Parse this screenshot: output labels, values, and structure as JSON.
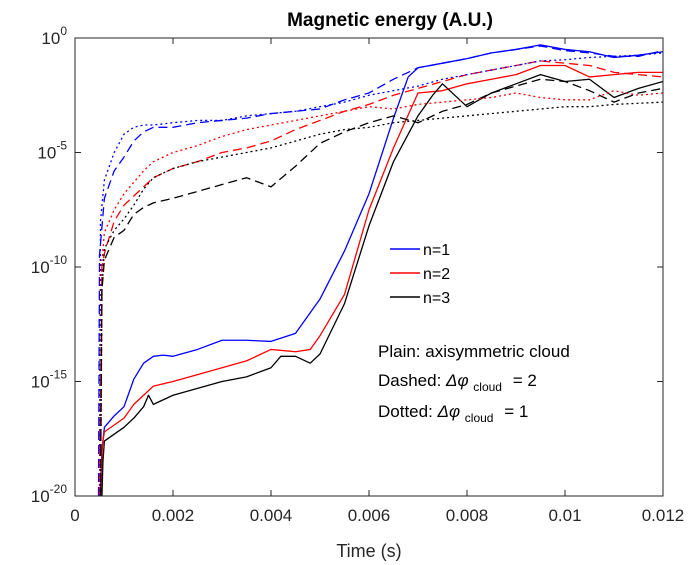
{
  "chart_data": {
    "type": "line",
    "title": "Magnetic energy (A.U.)",
    "xlabel": "Time (s)",
    "ylabel": "",
    "xlim": [
      0,
      0.012
    ],
    "ylim_exponent": [
      -20,
      0
    ],
    "y_scale": "log",
    "grid": false,
    "x_ticks": [
      "0",
      "0.002",
      "0.004",
      "0.006",
      "0.008",
      "0.01",
      "0.012"
    ],
    "y_ticks": [
      {
        "base": "10",
        "exp": "0",
        "value": 0
      },
      {
        "base": "10",
        "exp": "-5",
        "value": -5
      },
      {
        "base": "10",
        "exp": "-10",
        "value": -10
      },
      {
        "base": "10",
        "exp": "-15",
        "value": -15
      },
      {
        "base": "10",
        "exp": "-20",
        "value": -20
      }
    ],
    "legend": {
      "placement": "center-right",
      "entries": [
        {
          "label": "n=1",
          "color": "#0000ff"
        },
        {
          "label": "n=2",
          "color": "#ff0000"
        },
        {
          "label": "n=3",
          "color": "#000000"
        }
      ]
    },
    "annotations": {
      "plain": "Plain: axisymmetric cloud",
      "dashed_prefix": "Dashed: ",
      "dotted_prefix": "Dotted: ",
      "symbol": "Δφ",
      "subscript": "cloud",
      "dashed_value": "= 2",
      "dotted_value": "= 1"
    },
    "series": [
      {
        "mode": "Plain",
        "n": 1,
        "color": "#0000ff",
        "dash": "solid",
        "points": [
          [
            0.00051,
            -20
          ],
          [
            0.00055,
            -18
          ],
          [
            0.0006,
            -17.0
          ],
          [
            0.0008,
            -16.5
          ],
          [
            0.001,
            -16.1
          ],
          [
            0.0012,
            -14.9
          ],
          [
            0.0014,
            -14.2
          ],
          [
            0.0016,
            -13.9
          ],
          [
            0.0018,
            -13.85
          ],
          [
            0.002,
            -13.9
          ],
          [
            0.0025,
            -13.6
          ],
          [
            0.003,
            -13.2
          ],
          [
            0.0035,
            -13.2
          ],
          [
            0.004,
            -13.25
          ],
          [
            0.0045,
            -12.9
          ],
          [
            0.005,
            -11.4
          ],
          [
            0.0055,
            -9.3
          ],
          [
            0.006,
            -6.8
          ],
          [
            0.0065,
            -3.5
          ],
          [
            0.0068,
            -1.7
          ],
          [
            0.007,
            -1.3
          ],
          [
            0.0075,
            -1.1
          ],
          [
            0.008,
            -0.9
          ],
          [
            0.0085,
            -0.65
          ],
          [
            0.009,
            -0.5
          ],
          [
            0.0095,
            -0.3
          ],
          [
            0.01,
            -0.5
          ],
          [
            0.0105,
            -0.6
          ],
          [
            0.011,
            -0.85
          ],
          [
            0.0115,
            -0.75
          ],
          [
            0.012,
            -0.6
          ]
        ]
      },
      {
        "mode": "Plain",
        "n": 2,
        "color": "#ff0000",
        "dash": "solid",
        "points": [
          [
            0.00053,
            -20
          ],
          [
            0.00056,
            -17.7
          ],
          [
            0.0006,
            -17.2
          ],
          [
            0.0008,
            -16.9
          ],
          [
            0.001,
            -16.6
          ],
          [
            0.0012,
            -16.0
          ],
          [
            0.0014,
            -15.6
          ],
          [
            0.0016,
            -15.2
          ],
          [
            0.002,
            -15.0
          ],
          [
            0.0025,
            -14.7
          ],
          [
            0.003,
            -14.4
          ],
          [
            0.0035,
            -14.1
          ],
          [
            0.004,
            -13.6
          ],
          [
            0.0045,
            -13.7
          ],
          [
            0.0048,
            -13.6
          ],
          [
            0.005,
            -13.0
          ],
          [
            0.0055,
            -11.2
          ],
          [
            0.006,
            -7.5
          ],
          [
            0.0065,
            -4.8
          ],
          [
            0.007,
            -2.4
          ],
          [
            0.0075,
            -2.3
          ],
          [
            0.008,
            -2.0
          ],
          [
            0.0085,
            -1.8
          ],
          [
            0.009,
            -1.6
          ],
          [
            0.0095,
            -1.2
          ],
          [
            0.01,
            -1.2
          ],
          [
            0.0105,
            -1.7
          ],
          [
            0.011,
            -1.6
          ],
          [
            0.0115,
            -1.5
          ],
          [
            0.012,
            -1.5
          ]
        ]
      },
      {
        "mode": "Plain",
        "n": 3,
        "color": "#000000",
        "dash": "solid",
        "points": [
          [
            0.00055,
            -20
          ],
          [
            0.00057,
            -18.5
          ],
          [
            0.0006,
            -17.6
          ],
          [
            0.0008,
            -17.3
          ],
          [
            0.001,
            -17.0
          ],
          [
            0.0012,
            -16.6
          ],
          [
            0.0014,
            -16.1
          ],
          [
            0.0015,
            -15.6
          ],
          [
            0.0016,
            -16.0
          ],
          [
            0.002,
            -15.6
          ],
          [
            0.0025,
            -15.3
          ],
          [
            0.003,
            -15.0
          ],
          [
            0.0035,
            -14.8
          ],
          [
            0.004,
            -14.4
          ],
          [
            0.0042,
            -13.9
          ],
          [
            0.0045,
            -13.9
          ],
          [
            0.0048,
            -14.2
          ],
          [
            0.005,
            -13.8
          ],
          [
            0.0055,
            -11.6
          ],
          [
            0.006,
            -8.2
          ],
          [
            0.0065,
            -5.4
          ],
          [
            0.007,
            -3.4
          ],
          [
            0.0073,
            -2.5
          ],
          [
            0.0075,
            -2.0
          ],
          [
            0.008,
            -3.0
          ],
          [
            0.0085,
            -2.4
          ],
          [
            0.009,
            -2.0
          ],
          [
            0.0095,
            -1.6
          ],
          [
            0.01,
            -1.9
          ],
          [
            0.0105,
            -1.8
          ],
          [
            0.011,
            -2.6
          ],
          [
            0.0115,
            -2.2
          ],
          [
            0.012,
            -1.9
          ]
        ]
      },
      {
        "mode": "Dashed",
        "n": 1,
        "color": "#0000ff",
        "dash": "dashed",
        "points": [
          [
            0.00048,
            -20
          ],
          [
            0.0005,
            -9.5
          ],
          [
            0.0006,
            -7.0
          ],
          [
            0.0008,
            -5.8
          ],
          [
            0.001,
            -5.2
          ],
          [
            0.0012,
            -4.5
          ],
          [
            0.0014,
            -4.1
          ],
          [
            0.0016,
            -3.9
          ],
          [
            0.002,
            -3.9
          ],
          [
            0.0025,
            -3.7
          ],
          [
            0.003,
            -3.6
          ],
          [
            0.0035,
            -3.5
          ],
          [
            0.004,
            -3.3
          ],
          [
            0.0045,
            -3.2
          ],
          [
            0.005,
            -3.1
          ],
          [
            0.0055,
            -2.7
          ],
          [
            0.006,
            -2.4
          ],
          [
            0.0065,
            -1.8
          ],
          [
            0.007,
            -1.3
          ],
          [
            0.0075,
            -1.1
          ],
          [
            0.008,
            -0.9
          ],
          [
            0.0085,
            -0.65
          ],
          [
            0.009,
            -0.5
          ],
          [
            0.0095,
            -0.35
          ],
          [
            0.01,
            -0.55
          ],
          [
            0.0105,
            -0.65
          ],
          [
            0.011,
            -0.8
          ],
          [
            0.0115,
            -0.8
          ],
          [
            0.012,
            -0.55
          ]
        ]
      },
      {
        "mode": "Dashed",
        "n": 2,
        "color": "#ff0000",
        "dash": "dashed",
        "points": [
          [
            0.0005,
            -20
          ],
          [
            0.00055,
            -10.0
          ],
          [
            0.0006,
            -9.4
          ],
          [
            0.0008,
            -8.0
          ],
          [
            0.001,
            -7.3
          ],
          [
            0.0012,
            -6.9
          ],
          [
            0.0014,
            -6.5
          ],
          [
            0.0016,
            -6.1
          ],
          [
            0.002,
            -5.7
          ],
          [
            0.0025,
            -5.4
          ],
          [
            0.003,
            -5.0
          ],
          [
            0.0035,
            -4.8
          ],
          [
            0.004,
            -4.5
          ],
          [
            0.0045,
            -4.0
          ],
          [
            0.005,
            -3.6
          ],
          [
            0.0055,
            -3.2
          ],
          [
            0.006,
            -2.9
          ],
          [
            0.0065,
            -2.5
          ],
          [
            0.007,
            -2.2
          ],
          [
            0.0075,
            -1.9
          ],
          [
            0.008,
            -1.6
          ],
          [
            0.0085,
            -1.4
          ],
          [
            0.009,
            -1.2
          ],
          [
            0.0095,
            -1.0
          ],
          [
            0.01,
            -1.1
          ],
          [
            0.0105,
            -1.2
          ],
          [
            0.011,
            -1.5
          ],
          [
            0.0115,
            -1.6
          ],
          [
            0.012,
            -1.7
          ]
        ]
      },
      {
        "mode": "Dashed",
        "n": 3,
        "color": "#000000",
        "dash": "dashed",
        "points": [
          [
            0.00052,
            -20
          ],
          [
            0.00055,
            -11.0
          ],
          [
            0.0006,
            -9.7
          ],
          [
            0.0008,
            -8.7
          ],
          [
            0.001,
            -8.4
          ],
          [
            0.0012,
            -7.7
          ],
          [
            0.0014,
            -7.4
          ],
          [
            0.0016,
            -7.2
          ],
          [
            0.002,
            -7.0
          ],
          [
            0.0025,
            -6.7
          ],
          [
            0.003,
            -6.4
          ],
          [
            0.0035,
            -6.1
          ],
          [
            0.004,
            -6.5
          ],
          [
            0.0045,
            -5.6
          ],
          [
            0.005,
            -4.6
          ],
          [
            0.0055,
            -4.1
          ],
          [
            0.006,
            -3.7
          ],
          [
            0.0065,
            -3.4
          ],
          [
            0.007,
            -3.7
          ],
          [
            0.0075,
            -3.2
          ],
          [
            0.008,
            -2.9
          ],
          [
            0.0085,
            -2.4
          ],
          [
            0.009,
            -2.1
          ],
          [
            0.0095,
            -1.8
          ],
          [
            0.01,
            -1.9
          ],
          [
            0.0105,
            -2.3
          ],
          [
            0.011,
            -2.8
          ],
          [
            0.0115,
            -2.4
          ],
          [
            0.012,
            -2.2
          ]
        ]
      },
      {
        "mode": "Dotted",
        "n": 1,
        "color": "#0000ff",
        "dash": "dotted",
        "points": [
          [
            0.0005,
            -20
          ],
          [
            0.00052,
            -8.0
          ],
          [
            0.0006,
            -6.2
          ],
          [
            0.0008,
            -5.0
          ],
          [
            0.001,
            -4.2
          ],
          [
            0.0012,
            -3.9
          ],
          [
            0.0014,
            -3.8
          ],
          [
            0.0016,
            -3.8
          ],
          [
            0.002,
            -3.7
          ],
          [
            0.0025,
            -3.6
          ],
          [
            0.003,
            -3.6
          ],
          [
            0.0035,
            -3.4
          ],
          [
            0.004,
            -3.3
          ],
          [
            0.0045,
            -3.2
          ],
          [
            0.005,
            -3.0
          ],
          [
            0.0055,
            -2.8
          ],
          [
            0.006,
            -2.5
          ],
          [
            0.0065,
            -2.3
          ],
          [
            0.007,
            -2.1
          ],
          [
            0.0075,
            -1.8
          ],
          [
            0.008,
            -1.6
          ],
          [
            0.0085,
            -1.4
          ],
          [
            0.009,
            -1.2
          ],
          [
            0.0095,
            -1.0
          ],
          [
            0.01,
            -0.95
          ],
          [
            0.0105,
            -0.85
          ],
          [
            0.011,
            -0.8
          ],
          [
            0.0115,
            -0.75
          ],
          [
            0.012,
            -0.65
          ]
        ]
      },
      {
        "mode": "Dotted",
        "n": 2,
        "color": "#ff0000",
        "dash": "dotted",
        "points": [
          [
            0.00051,
            -20
          ],
          [
            0.00054,
            -10.0
          ],
          [
            0.0006,
            -8.5
          ],
          [
            0.0008,
            -7.5
          ],
          [
            0.001,
            -6.8
          ],
          [
            0.0012,
            -6.3
          ],
          [
            0.0014,
            -5.8
          ],
          [
            0.0016,
            -5.4
          ],
          [
            0.002,
            -5.0
          ],
          [
            0.0025,
            -4.7
          ],
          [
            0.003,
            -4.3
          ],
          [
            0.0035,
            -4.0
          ],
          [
            0.004,
            -3.8
          ],
          [
            0.0045,
            -3.6
          ],
          [
            0.005,
            -3.4
          ],
          [
            0.0055,
            -3.2
          ],
          [
            0.006,
            -3.0
          ],
          [
            0.0065,
            -3.1
          ],
          [
            0.007,
            -2.9
          ],
          [
            0.0075,
            -2.8
          ],
          [
            0.008,
            -2.7
          ],
          [
            0.0085,
            -2.6
          ],
          [
            0.009,
            -2.4
          ],
          [
            0.0095,
            -2.6
          ],
          [
            0.01,
            -2.7
          ],
          [
            0.0105,
            -2.7
          ],
          [
            0.011,
            -2.3
          ],
          [
            0.0115,
            -2.5
          ],
          [
            0.012,
            -2.4
          ]
        ]
      },
      {
        "mode": "Dotted",
        "n": 3,
        "color": "#000000",
        "dash": "dotted",
        "points": [
          [
            0.00052,
            -20
          ],
          [
            0.00055,
            -11.0
          ],
          [
            0.0006,
            -9.2
          ],
          [
            0.0008,
            -8.4
          ],
          [
            0.001,
            -7.9
          ],
          [
            0.0012,
            -7.3
          ],
          [
            0.0014,
            -6.6
          ],
          [
            0.0016,
            -6.1
          ],
          [
            0.002,
            -5.7
          ],
          [
            0.0025,
            -5.4
          ],
          [
            0.003,
            -5.2
          ],
          [
            0.0035,
            -5.0
          ],
          [
            0.004,
            -4.8
          ],
          [
            0.0045,
            -4.5
          ],
          [
            0.005,
            -4.2
          ],
          [
            0.0055,
            -4.0
          ],
          [
            0.006,
            -3.9
          ],
          [
            0.0065,
            -3.7
          ],
          [
            0.007,
            -3.6
          ],
          [
            0.0075,
            -3.5
          ],
          [
            0.008,
            -3.4
          ],
          [
            0.0085,
            -3.3
          ],
          [
            0.009,
            -3.2
          ],
          [
            0.0095,
            -3.1
          ],
          [
            0.01,
            -3.0
          ],
          [
            0.0105,
            -3.0
          ],
          [
            0.011,
            -2.9
          ],
          [
            0.0115,
            -2.85
          ],
          [
            0.012,
            -2.8
          ]
        ]
      }
    ]
  }
}
